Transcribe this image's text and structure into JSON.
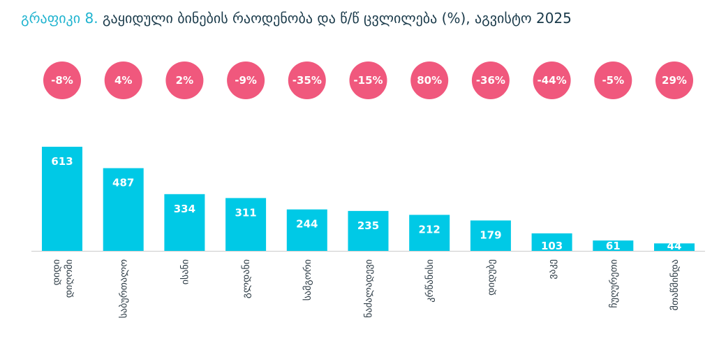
{
  "chart_data": {
    "type": "bar",
    "title_label": "გრაფიკი 8.",
    "title": "გაყიდული ბინების რაოდენობა და წ/წ ცვლილება (%), აგვისტო 2025",
    "categories": [
      "დიდი დიღომი",
      "საბურთალო",
      "ისანი",
      "გლდანი",
      "სამგორი",
      "ნაძალადევი",
      "კრწანისი",
      "დიდუბე",
      "ვაკე",
      "ჩუღურეთი",
      "მთაწმინდა"
    ],
    "values": [
      613,
      487,
      334,
      311,
      244,
      235,
      212,
      179,
      103,
      61,
      44
    ],
    "yoy_change": [
      "-8%",
      "4%",
      "2%",
      "-9%",
      "-35%",
      "-15%",
      "80%",
      "-36%",
      "-44%",
      "-5%",
      "29%"
    ],
    "ylim": [
      0,
      700
    ],
    "colors": {
      "bar": "#00c9e6",
      "badge": "#f0587d",
      "title_accent": "#1fb3cf",
      "title_text": "#1a3a4a",
      "axis": "#cccccc"
    }
  }
}
